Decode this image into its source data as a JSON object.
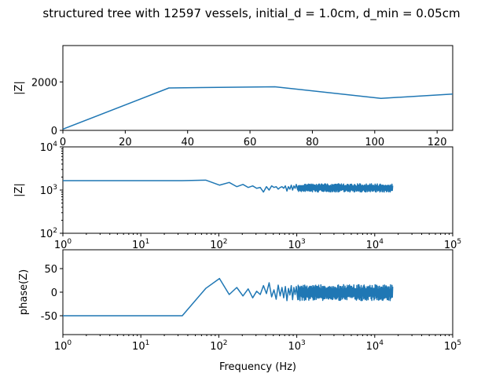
{
  "title": "structured tree with 12597 vessels, initial_d = 1.0cm, d_min = 0.05cm",
  "chart_data": [
    {
      "type": "line",
      "ylabel": "|Z|",
      "xlabel": "",
      "xscale": "linear",
      "yscale": "linear",
      "xlim": [
        0,
        125
      ],
      "ylim": [
        0,
        3500
      ],
      "xticks": [
        0,
        20,
        40,
        60,
        80,
        100,
        120
      ],
      "yticks": [
        0,
        2000
      ],
      "series": [
        {
          "color": "#1f77b4",
          "x": [
            0,
            34,
            68,
            102,
            125
          ],
          "y": [
            50,
            1750,
            1800,
            1320,
            1500
          ]
        }
      ]
    },
    {
      "type": "line",
      "ylabel": "|Z|",
      "xlabel": "",
      "xscale": "log",
      "yscale": "log",
      "xlim": [
        1,
        100000
      ],
      "ylim": [
        100,
        10000
      ],
      "xticks": [
        {
          "base": "10",
          "exp": "0",
          "value": 1
        },
        {
          "base": "10",
          "exp": "1",
          "value": 10
        },
        {
          "base": "10",
          "exp": "2",
          "value": 100
        },
        {
          "base": "10",
          "exp": "3",
          "value": 1000
        },
        {
          "base": "10",
          "exp": "4",
          "value": 10000
        },
        {
          "base": "10",
          "exp": "5",
          "value": 100000
        }
      ],
      "yticks": [
        {
          "base": "10",
          "exp": "2",
          "value": 100
        },
        {
          "base": "10",
          "exp": "3",
          "value": 1000
        },
        {
          "base": "10",
          "exp": "4",
          "value": 10000
        }
      ],
      "series": [
        {
          "color": "#1f77b4",
          "x": [
            1,
            34,
            68,
            102,
            136,
            170,
            204,
            238,
            272,
            306,
            340,
            374,
            408,
            442,
            476,
            510,
            544,
            578,
            612,
            646,
            680,
            714,
            748,
            782,
            816,
            850,
            884,
            918,
            952,
            986,
            1020
          ],
          "y": [
            1650,
            1650,
            1700,
            1300,
            1500,
            1200,
            1350,
            1150,
            1250,
            1100,
            1150,
            900,
            1200,
            1000,
            1250,
            1150,
            1200,
            1050,
            1150,
            1200,
            1100,
            1250,
            950,
            1200,
            1050,
            1300,
            1000,
            1250,
            1100,
            1350,
            1050
          ],
          "band": {
            "x_from": 1020,
            "x_to": 17000,
            "y_low": 900,
            "y_high": 1400
          }
        }
      ]
    },
    {
      "type": "line",
      "ylabel": "phase(Z)",
      "xlabel": "Frequency (Hz)",
      "xscale": "log",
      "yscale": "linear",
      "xlim": [
        1,
        100000
      ],
      "ylim": [
        -90,
        90
      ],
      "xticks": [
        {
          "base": "10",
          "exp": "0",
          "value": 1
        },
        {
          "base": "10",
          "exp": "1",
          "value": 10
        },
        {
          "base": "10",
          "exp": "2",
          "value": 100
        },
        {
          "base": "10",
          "exp": "3",
          "value": 1000
        },
        {
          "base": "10",
          "exp": "4",
          "value": 10000
        },
        {
          "base": "10",
          "exp": "5",
          "value": 100000
        }
      ],
      "yticks": [
        -50,
        0,
        50
      ],
      "series": [
        {
          "color": "#1f77b4",
          "x": [
            1,
            34,
            68,
            102,
            136,
            170,
            204,
            238,
            272,
            306,
            340,
            374,
            408,
            442,
            476,
            510,
            544,
            578,
            612,
            646,
            680,
            714,
            748,
            782,
            816,
            850,
            884,
            918,
            952,
            986,
            1020
          ],
          "y": [
            -50,
            -50,
            8,
            29,
            -5,
            10,
            -8,
            7,
            -12,
            2,
            -5,
            14,
            -3,
            20,
            -10,
            5,
            -15,
            15,
            -8,
            10,
            -12,
            12,
            -18,
            8,
            -6,
            14,
            -16,
            10,
            -5,
            12,
            -10
          ],
          "band": {
            "x_from": 1020,
            "x_to": 17000,
            "y_low": -18,
            "y_high": 16
          }
        }
      ]
    }
  ]
}
